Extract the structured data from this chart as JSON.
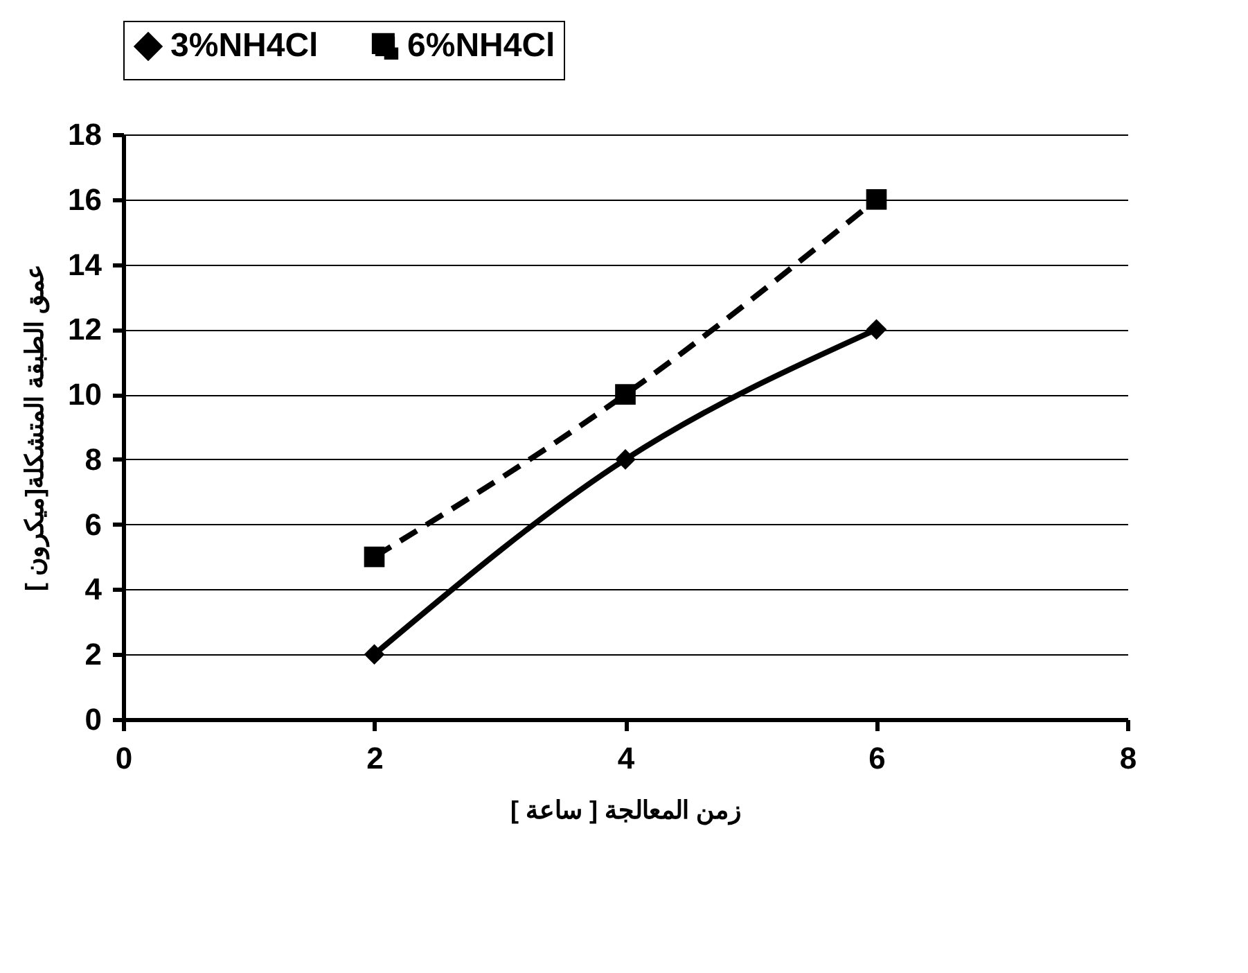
{
  "chart_data": {
    "type": "line",
    "xlabel": "زمن المعالجة [ ساعة ]",
    "ylabel": "عمق الطبقة المتشكلة[ميكرون ]",
    "x": [
      2,
      4,
      6
    ],
    "series": [
      {
        "name": "3%NH4Cl",
        "color": "#000000",
        "values": [
          2,
          8,
          12
        ],
        "marker": "diamond",
        "line_style": "solid"
      },
      {
        "name": "6%NH4Cl",
        "color": "#000000",
        "values": [
          5,
          10,
          16
        ],
        "marker": "square",
        "line_style": "dashed"
      }
    ],
    "xlim": [
      0,
      8
    ],
    "xticks": [
      0,
      2,
      4,
      6,
      8
    ],
    "ylim": [
      0,
      18
    ],
    "yticks": [
      0,
      2,
      4,
      6,
      8,
      10,
      12,
      14,
      16,
      18
    ],
    "grid": "y",
    "legend": "top"
  }
}
